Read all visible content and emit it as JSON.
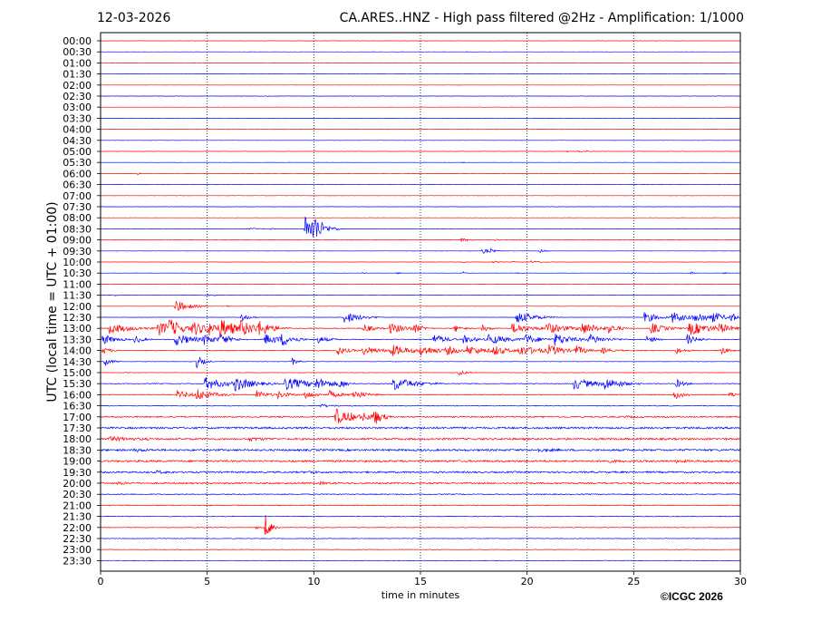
{
  "header": {
    "date": "12-03-2026",
    "title": "CA.ARES..HNZ - High pass filtered @2Hz - Amplification: 1/1000"
  },
  "footer": {
    "copyright": "©ICGC 2026"
  },
  "colors": {
    "red": "#ff0000",
    "blue": "#0000ff",
    "frame": "#000000",
    "grid": "#000080"
  },
  "chart_data": {
    "type": "line",
    "subtype": "helicorder",
    "xlabel": "time in minutes",
    "ylabel": "UTC (local time = UTC + 01:00)",
    "xlim": [
      0,
      30
    ],
    "xticks": [
      0,
      5,
      10,
      15,
      20,
      25,
      30
    ],
    "xtick_labels": [
      "0",
      "5",
      "10",
      "15",
      "20",
      "25",
      "30"
    ],
    "vertical_grid_at": [
      5,
      10,
      15,
      20,
      25
    ],
    "vertical_grid_style": "dotted",
    "trace_colors_alternate": [
      "red",
      "blue"
    ],
    "rows": [
      {
        "label": "00:00",
        "noise": 0.15,
        "events": []
      },
      {
        "label": "00:30",
        "noise": 0.15,
        "events": []
      },
      {
        "label": "01:00",
        "noise": 0.15,
        "events": []
      },
      {
        "label": "01:30",
        "noise": 0.15,
        "events": []
      },
      {
        "label": "02:00",
        "noise": 0.15,
        "events": []
      },
      {
        "label": "02:30",
        "noise": 0.15,
        "events": [
          [
            7.8,
            0.8,
            0.1
          ]
        ]
      },
      {
        "label": "03:00",
        "noise": 0.15,
        "events": []
      },
      {
        "label": "03:30",
        "noise": 0.15,
        "events": []
      },
      {
        "label": "04:00",
        "noise": 0.15,
        "events": []
      },
      {
        "label": "04:30",
        "noise": 0.15,
        "events": []
      },
      {
        "label": "05:00",
        "noise": 0.15,
        "events": [
          [
            21.9,
            1.2,
            0.1
          ],
          [
            22.4,
            1.0,
            0.1
          ],
          [
            22.8,
            1.0,
            0.1
          ]
        ]
      },
      {
        "label": "05:30",
        "noise": 0.15,
        "events": [
          [
            17,
            0.8,
            0.05
          ]
        ]
      },
      {
        "label": "06:00",
        "noise": 0.15,
        "events": [
          [
            1.7,
            2,
            0.1
          ]
        ]
      },
      {
        "label": "06:30",
        "noise": 0.15,
        "events": []
      },
      {
        "label": "07:00",
        "noise": 0.15,
        "events": []
      },
      {
        "label": "07:30",
        "noise": 0.15,
        "events": []
      },
      {
        "label": "08:00",
        "noise": 0.15,
        "events": []
      },
      {
        "label": "08:30",
        "noise": 0.15,
        "events": [
          [
            7.0,
            1.5,
            0.3
          ],
          [
            8.0,
            1.2,
            0.1
          ],
          [
            9.6,
            18,
            0.3
          ],
          [
            9.95,
            14,
            0.5
          ]
        ]
      },
      {
        "label": "09:00",
        "noise": 0.15,
        "events": [
          [
            16.9,
            2,
            0.4
          ],
          [
            18.5,
            1.0,
            0.2
          ],
          [
            19.5,
            1.0,
            0.2
          ]
        ]
      },
      {
        "label": "09:30",
        "noise": 0.15,
        "events": [
          [
            17.9,
            3,
            0.4
          ],
          [
            18.3,
            1.5,
            0.1
          ],
          [
            20.6,
            2,
            0.2
          ]
        ]
      },
      {
        "label": "10:00",
        "noise": 0.15,
        "events": [
          [
            17,
            1.0,
            0.1
          ],
          [
            18.4,
            1.5,
            0.2
          ],
          [
            19.3,
            1.0,
            0.1
          ],
          [
            20.2,
            1.5,
            0.4
          ]
        ]
      },
      {
        "label": "10:30",
        "noise": 0.15,
        "events": [
          [
            12.2,
            1.0,
            0.1
          ],
          [
            13.9,
            1.5,
            0.1
          ],
          [
            17,
            1.5,
            0.1
          ],
          [
            19.5,
            1.0,
            0.1
          ],
          [
            24.9,
            2,
            0.1
          ],
          [
            27.7,
            1.5,
            0.1
          ],
          [
            29.2,
            1.5,
            0.1
          ]
        ]
      },
      {
        "label": "11:00",
        "noise": 0.15,
        "events": []
      },
      {
        "label": "11:30",
        "noise": 0.15,
        "events": [
          [
            0.7,
            1.0,
            0.1
          ],
          [
            4.9,
            2.5,
            0.15
          ],
          [
            5.3,
            1.0,
            0.1
          ]
        ]
      },
      {
        "label": "12:00",
        "noise": 0.15,
        "events": [
          [
            3.5,
            7,
            0.6
          ],
          [
            5.9,
            1.5,
            0.1
          ]
        ]
      },
      {
        "label": "12:30",
        "noise": 0.15,
        "events": [
          [
            6.6,
            5,
            0.3
          ],
          [
            11.4,
            7,
            0.7
          ],
          [
            19.5,
            7,
            0.8
          ],
          [
            25.5,
            6,
            0.6
          ],
          [
            26.8,
            6,
            0.7
          ],
          [
            27.8,
            7,
            0.6
          ],
          [
            28.7,
            6,
            0.4
          ],
          [
            29.5,
            6,
            0.3
          ]
        ]
      },
      {
        "label": "13:00",
        "noise": 0.4,
        "events": [
          [
            0.4,
            6,
            0.9
          ],
          [
            2.7,
            8,
            0.8
          ],
          [
            3.2,
            7,
            0.5
          ],
          [
            4.3,
            7,
            0.8
          ],
          [
            5.0,
            6,
            0.5
          ],
          [
            5.6,
            8,
            0.9
          ],
          [
            6.5,
            7,
            0.8
          ],
          [
            7.4,
            6,
            0.6
          ],
          [
            12.3,
            5,
            0.4
          ],
          [
            13.5,
            6,
            0.8
          ],
          [
            14.7,
            4,
            0.3
          ],
          [
            16.6,
            4,
            0.3
          ],
          [
            17.9,
            4,
            0.3
          ],
          [
            19.3,
            6,
            0.8
          ],
          [
            20.9,
            6,
            0.9
          ],
          [
            22.5,
            6,
            0.8
          ],
          [
            23.8,
            4,
            0.4
          ],
          [
            25.8,
            6,
            0.6
          ],
          [
            27.6,
            8,
            0.9
          ],
          [
            29.0,
            5,
            0.4
          ]
        ]
      },
      {
        "label": "13:30",
        "noise": 0.4,
        "events": [
          [
            0.1,
            6,
            0.5
          ],
          [
            1.6,
            5,
            0.3
          ],
          [
            3.5,
            7,
            0.8
          ],
          [
            4.8,
            5,
            0.5
          ],
          [
            5.6,
            6,
            0.5
          ],
          [
            7.7,
            6,
            0.8
          ],
          [
            8.5,
            6,
            0.4
          ],
          [
            10.2,
            4,
            0.4
          ],
          [
            15.6,
            6,
            0.5
          ],
          [
            17.0,
            5,
            0.5
          ],
          [
            18.2,
            6,
            0.8
          ],
          [
            19.9,
            5,
            0.7
          ],
          [
            21.3,
            6,
            0.8
          ],
          [
            22.9,
            5,
            0.7
          ],
          [
            25.6,
            5,
            0.3
          ],
          [
            27.5,
            6,
            0.4
          ]
        ]
      },
      {
        "label": "14:00",
        "noise": 0.4,
        "events": [
          [
            0.1,
            4,
            0.3
          ],
          [
            11.1,
            5,
            0.4
          ],
          [
            12.3,
            5,
            0.7
          ],
          [
            13.6,
            6,
            0.9
          ],
          [
            15.0,
            5,
            0.7
          ],
          [
            16.2,
            5,
            0.5
          ],
          [
            17.2,
            5,
            0.9
          ],
          [
            18.4,
            5,
            0.5
          ],
          [
            19.6,
            6,
            0.9
          ],
          [
            21.0,
            5,
            0.7
          ],
          [
            22.3,
            5,
            0.4
          ],
          [
            23.5,
            4,
            0.4
          ],
          [
            27.0,
            4,
            0.3
          ],
          [
            29.0,
            6,
            0.3
          ]
        ]
      },
      {
        "label": "14:30",
        "noise": 0.2,
        "events": [
          [
            0.2,
            5,
            0.3
          ],
          [
            4.5,
            7,
            0.3
          ],
          [
            9.0,
            4,
            0.2
          ]
        ]
      },
      {
        "label": "15:00",
        "noise": 0.2,
        "events": [
          [
            1.2,
            1.0,
            0.1
          ],
          [
            16.8,
            4,
            0.3
          ],
          [
            20.8,
            1.2,
            0.1
          ]
        ]
      },
      {
        "label": "15:30",
        "noise": 0.4,
        "events": [
          [
            4.9,
            7,
            0.9
          ],
          [
            6.3,
            7,
            0.8
          ],
          [
            8.6,
            7,
            1.2
          ],
          [
            10.1,
            5,
            0.6
          ],
          [
            11.2,
            4,
            0.3
          ],
          [
            13.7,
            8,
            0.9
          ],
          [
            22.2,
            6,
            1.0
          ],
          [
            23.6,
            6,
            0.7
          ],
          [
            27.0,
            5,
            0.3
          ]
        ]
      },
      {
        "label": "16:00",
        "noise": 0.4,
        "events": [
          [
            3.6,
            5,
            0.5
          ],
          [
            4.5,
            6,
            0.7
          ],
          [
            7.3,
            5,
            0.4
          ],
          [
            8.3,
            4,
            0.5
          ],
          [
            9.6,
            5,
            0.4
          ],
          [
            10.7,
            5,
            0.4
          ],
          [
            11.8,
            6,
            0.5
          ],
          [
            26.9,
            5,
            0.4
          ],
          [
            29.5,
            3,
            0.2
          ]
        ]
      },
      {
        "label": "16:30",
        "noise": 0.4,
        "events": [
          [
            10.3,
            1.5,
            0.6
          ]
        ]
      },
      {
        "label": "17:00",
        "noise": 0.7,
        "events": [
          [
            11.0,
            10,
            0.5
          ],
          [
            11.6,
            3,
            0.4
          ],
          [
            12.3,
            4,
            0.5
          ],
          [
            12.8,
            9,
            0.3
          ],
          [
            24.6,
            1.0,
            0.4
          ]
        ]
      },
      {
        "label": "17:30",
        "noise": 1.0,
        "events": []
      },
      {
        "label": "18:00",
        "noise": 1.0,
        "events": [
          [
            0.4,
            2,
            0.8
          ],
          [
            7.0,
            1.5,
            0.5
          ]
        ]
      },
      {
        "label": "18:30",
        "noise": 1.0,
        "events": [
          [
            1.6,
            1.5,
            0.4
          ],
          [
            20.5,
            1.5,
            0.5
          ]
        ]
      },
      {
        "label": "19:00",
        "noise": 1.0,
        "events": [
          [
            23.6,
            1.5,
            0.4
          ],
          [
            27.0,
            1.2,
            0.3
          ]
        ]
      },
      {
        "label": "19:30",
        "noise": 0.9,
        "events": [
          [
            2.6,
            1.5,
            0.4
          ],
          [
            9.8,
            1.2,
            0.3
          ]
        ]
      },
      {
        "label": "20:00",
        "noise": 0.8,
        "events": [
          [
            0.8,
            1.5,
            0.3
          ],
          [
            10.3,
            1.2,
            0.4
          ]
        ]
      },
      {
        "label": "20:30",
        "noise": 0.5,
        "events": []
      },
      {
        "label": "21:00",
        "noise": 0.45,
        "events": []
      },
      {
        "label": "21:30",
        "noise": 0.4,
        "events": []
      },
      {
        "label": "22:00",
        "noise": 0.35,
        "events": [
          [
            4.3,
            1.2,
            0.1
          ],
          [
            7.3,
            1.5,
            0.1
          ],
          [
            7.7,
            16,
            0.25
          ]
        ]
      },
      {
        "label": "22:30",
        "noise": 0.3,
        "events": []
      },
      {
        "label": "23:00",
        "noise": 0.3,
        "events": []
      },
      {
        "label": "23:30",
        "noise": 0.3,
        "events": []
      }
    ]
  }
}
